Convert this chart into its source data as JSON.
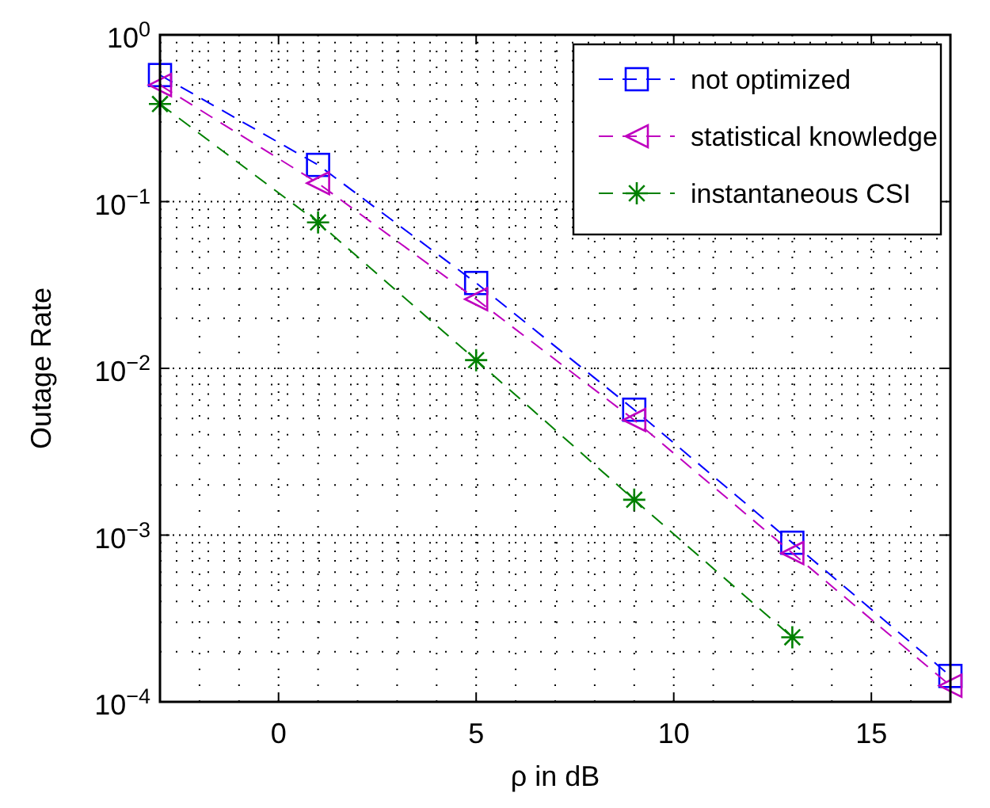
{
  "chart_data": {
    "type": "line",
    "xlabel": "ρ in dB",
    "ylabel": "Outage Rate",
    "x": [
      -3,
      1,
      5,
      9,
      13,
      17
    ],
    "series": [
      {
        "name": "not optimized",
        "color": "#0000ff",
        "marker": "square",
        "values": [
          0.574,
          0.166,
          0.0325,
          0.00565,
          0.0009,
          0.000143
        ]
      },
      {
        "name": "statistical knowledge",
        "color": "#bf00bf",
        "marker": "triangle",
        "values": [
          0.5,
          0.129,
          0.026,
          0.0049,
          0.00078,
          0.000125
        ]
      },
      {
        "name": "instantaneous CSI",
        "color": "#008000",
        "marker": "cross",
        "values": [
          0.385,
          0.075,
          0.0112,
          0.00163,
          0.000244,
          null
        ]
      }
    ],
    "log": "y",
    "line_style": "dashed",
    "grid": true,
    "legend": "top right",
    "xlim": [
      -3,
      17
    ],
    "xticks": [
      0,
      5,
      10,
      15
    ],
    "ylim": [
      0.0001,
      1
    ],
    "yticks": [
      {
        "value": 0.0001,
        "label": "10$^{−4}$"
      },
      {
        "value": 0.001,
        "label": "10$^{−3}$"
      },
      {
        "value": 0.01,
        "label": "10$^{−2}$"
      },
      {
        "value": 0.1,
        "label": "10$^{−1}$"
      },
      {
        "value": 1,
        "label": "10$^{0}$"
      }
    ]
  }
}
